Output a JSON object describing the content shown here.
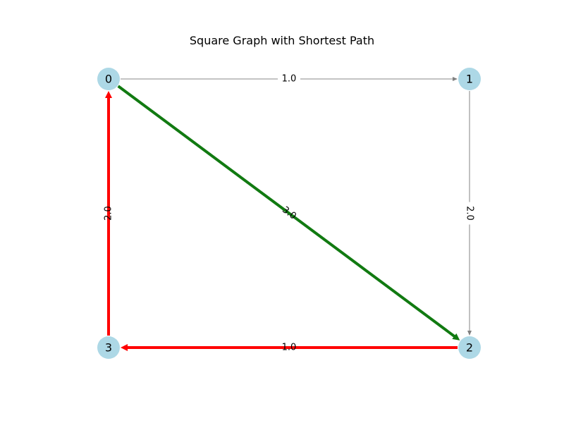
{
  "title": "Square Graph with Shortest Path",
  "colors": {
    "node_fill": "#add8e6",
    "default_edge": "#a0a0a0",
    "default_arrow": "#808080",
    "path_green": "#117a11",
    "path_red": "#ff0000",
    "label_bg": "#ffffff"
  },
  "nodes": [
    {
      "id": "0",
      "label": "0"
    },
    {
      "id": "1",
      "label": "1"
    },
    {
      "id": "2",
      "label": "2"
    },
    {
      "id": "3",
      "label": "3"
    }
  ],
  "edges": [
    {
      "from": "0",
      "to": "1",
      "weight": "1.0",
      "style": "default"
    },
    {
      "from": "1",
      "to": "2",
      "weight": "2.0",
      "style": "default"
    },
    {
      "from": "0",
      "to": "2",
      "weight": "3.0",
      "style": "green"
    },
    {
      "from": "2",
      "to": "3",
      "weight": "1.0",
      "style": "red"
    },
    {
      "from": "3",
      "to": "0",
      "weight": "2.0",
      "style": "red"
    }
  ]
}
